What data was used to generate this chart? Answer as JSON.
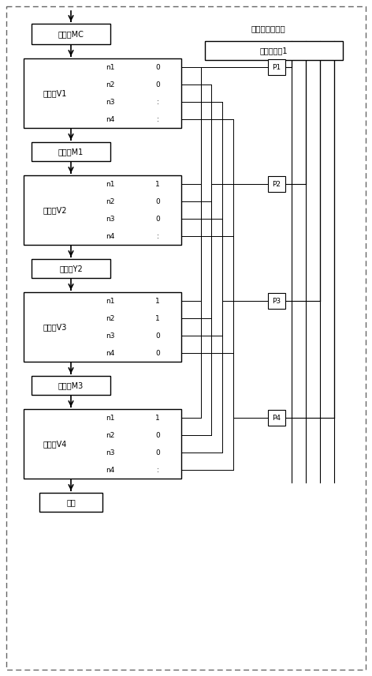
{
  "bg_color": "#ffffff",
  "fig_width": 4.72,
  "fig_height": 8.56,
  "control_signal_label": "控车信号发生器",
  "combined_signal_label": "综合信号源1",
  "register_labels": [
    "储存器V1",
    "储存器V2",
    "储存器V3",
    "储存器V4"
  ],
  "counter_labels": [
    "运计器M1",
    "运计器Y2",
    "运计器M3"
  ],
  "result_label": "结果",
  "top_label": "储存器MC",
  "port_labels": [
    "n1",
    "n2",
    "n3",
    "n4"
  ],
  "V1_values": [
    "0",
    "0",
    ":",
    ":"
  ],
  "V2_values": [
    "1",
    "0",
    "0",
    ":"
  ],
  "V3_values": [
    "1",
    "1",
    "0",
    "0"
  ],
  "V4_values": [
    "1",
    "0",
    "0",
    ":"
  ],
  "P_labels": [
    "P1",
    "P2",
    "P3",
    "P4"
  ]
}
